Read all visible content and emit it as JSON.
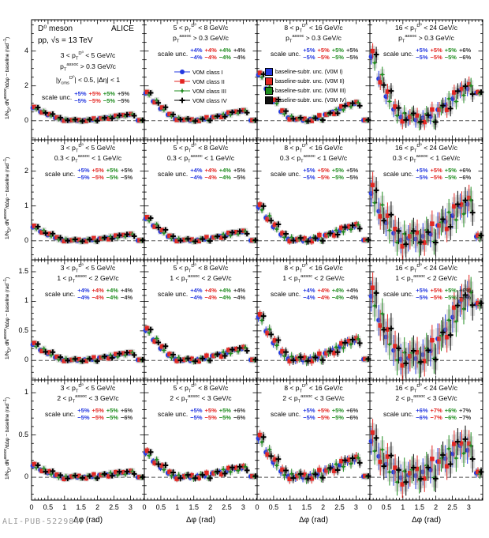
{
  "watermark": "ALI-PUB-522984",
  "header": {
    "meson": "D⁰ meson",
    "experiment": "ALICE",
    "system": "pp, √s = 13 TeV",
    "rapidity": "|y_{cms}^{D⁰}| < 0.5, |Δη| < 1",
    "scale_unc_suffix": "scale unc."
  },
  "legend": {
    "classes": [
      "V0M class I",
      "V0M class II",
      "V0M class III",
      "V0M class IV"
    ],
    "boxes": [
      "baseline-subtr. unc. (V0M I)",
      "baseline-subtr. unc. (V0M II)",
      "baseline-subtr. unc. (V0M III)",
      "baseline-subtr. unc. (V0M IV)"
    ]
  },
  "unc_colors": [
    "#2438e0",
    "#e32622",
    "#1f8c1f",
    "#3a3a3a"
  ],
  "chart_data": {
    "type": "scatter",
    "grid": {
      "rows": 4,
      "cols": 4,
      "shared_x": true
    },
    "xlabel": "Δφ (rad)",
    "ylabel": "1/N_{D⁰} dN^{assoc}/dΔφ − baseline (rad^{−1})",
    "xlim": [
      0,
      3.42
    ],
    "xticks": [
      0,
      0.5,
      1,
      1.5,
      2,
      2.5,
      3
    ],
    "x": [
      0.11,
      0.34,
      0.56,
      0.79,
      1.01,
      1.24,
      1.46,
      1.68,
      1.91,
      2.13,
      2.36,
      2.58,
      2.81,
      3.03,
      3.3
    ],
    "baseline": 0,
    "rows": [
      {
        "assoc_label": "p_{T}^{assoc} > 0.3 GeV/c",
        "ylim": [
          -1.1,
          5.8
        ],
        "yticks": [
          0,
          2,
          4
        ],
        "yminor": 0.5
      },
      {
        "assoc_label": "0.3 < p_{T}^{assoc} < 1 GeV/c",
        "ylim": [
          -0.55,
          2.9
        ],
        "yticks": [
          0,
          1,
          2
        ],
        "yminor": 0.2
      },
      {
        "assoc_label": "1 < p_{T}^{assoc} < 2 GeV/c",
        "ylim": [
          -0.33,
          1.7
        ],
        "yticks": [
          0,
          0.5,
          1,
          1.5
        ],
        "yminor": 0.1
      },
      {
        "assoc_label": "2 < p_{T}^{assoc} < 3 GeV/c",
        "ylim": [
          -0.27,
          1.15
        ],
        "yticks": [
          0,
          0.5,
          1
        ],
        "yminor": 0.1
      }
    ],
    "cols": [
      {
        "dpt_label": "3 < p_{T}^{D⁰} < 5 GeV/c"
      },
      {
        "dpt_label": "5 < p_{T}^{D⁰} < 8 GeV/c"
      },
      {
        "dpt_label": "8 < p_{T}^{D⁰} < 16 GeV/c"
      },
      {
        "dpt_label": "16 < p_{T}^{D⁰} < 24 GeV/c"
      }
    ],
    "series": [
      {
        "name": "V0M class I",
        "marker": "circle",
        "color": "#2438e0",
        "xoff": -3,
        "jitter": [
          0.2,
          -0.1,
          0.1,
          0,
          -0.2,
          0.1,
          0,
          0.1,
          -0.1,
          0.2,
          0,
          -0.1,
          0.1,
          0,
          0
        ]
      },
      {
        "name": "V0M class II",
        "marker": "square",
        "color": "#e32622",
        "xoff": -1,
        "jitter": [
          1,
          -0.6,
          0.8,
          0.4,
          -0.8,
          0.3,
          0.6,
          -0.5,
          0.9,
          0.2,
          -0.7,
          0.8,
          0.3,
          0.6,
          0.1
        ]
      },
      {
        "name": "V0M class III",
        "marker": "star",
        "color": "#1f8c1f",
        "xoff": 1.5,
        "jitter": [
          -0.7,
          0.5,
          -0.6,
          -0.9,
          0.4,
          0.6,
          -0.4,
          0.7,
          -0.8,
          0.5,
          0.9,
          -0.5,
          -0.6,
          0.4,
          -0.1
        ]
      },
      {
        "name": "V0M class IV",
        "marker": "plus",
        "color": "#000000",
        "xoff": 3.5,
        "jitter": [
          0.5,
          -1,
          0.9,
          0.2,
          -0.6,
          0.8,
          -0.3,
          0.5,
          -0.9,
          0.8,
          -0.5,
          1,
          0.7,
          -0.8,
          0.1
        ]
      }
    ],
    "panels": [
      {
        "row": 0,
        "col": 0,
        "plus": [
          "+5%",
          "+5%",
          "+5%",
          "+5%"
        ],
        "minus": [
          "−5%",
          "−5%",
          "−5%",
          "−5%"
        ],
        "err": 0.07,
        "jscale": 0.07,
        "y_base": [
          0.72,
          0.52,
          0.32,
          0.16,
          0.06,
          0.01,
          0.0,
          0.02,
          0.06,
          0.11,
          0.17,
          0.23,
          0.3,
          0.34,
          0.02
        ]
      },
      {
        "row": 0,
        "col": 1,
        "plus": [
          "+4%",
          "+4%",
          "+4%",
          "+4%"
        ],
        "minus": [
          "−4%",
          "−4%",
          "−4%",
          "−4%"
        ],
        "err": 0.09,
        "jscale": 0.1,
        "y_base": [
          1.55,
          1.12,
          0.68,
          0.34,
          0.13,
          0.03,
          0.01,
          0.04,
          0.1,
          0.18,
          0.28,
          0.39,
          0.49,
          0.54,
          0.02
        ]
      },
      {
        "row": 0,
        "col": 2,
        "plus": [
          "+5%",
          "+5%",
          "+5%",
          "+5%"
        ],
        "minus": [
          "−5%",
          "−5%",
          "−5%",
          "−5%"
        ],
        "err": 0.14,
        "jscale": 0.15,
        "y_base": [
          2.6,
          1.85,
          1.08,
          0.52,
          0.2,
          0.05,
          0.02,
          0.07,
          0.17,
          0.32,
          0.5,
          0.7,
          0.9,
          0.98,
          0.03
        ]
      },
      {
        "row": 0,
        "col": 3,
        "plus": [
          "+5%",
          "+5%",
          "+5%",
          "+6%"
        ],
        "minus": [
          "−5%",
          "−5%",
          "−5%",
          "−6%"
        ],
        "err": 0.45,
        "jscale": 0.4,
        "y_base": [
          3.6,
          2.45,
          1.35,
          0.65,
          0.28,
          0.1,
          0.05,
          0.12,
          0.28,
          0.55,
          0.9,
          1.3,
          1.7,
          1.85,
          1.6
        ]
      },
      {
        "row": 1,
        "col": 0,
        "plus": [
          "+5%",
          "+5%",
          "+5%",
          "+5%"
        ],
        "minus": [
          "−5%",
          "−5%",
          "−5%",
          "−5%"
        ],
        "err": 0.05,
        "jscale": 0.05,
        "y_base": [
          0.38,
          0.27,
          0.16,
          0.08,
          0.03,
          0.0,
          0.0,
          0.01,
          0.03,
          0.05,
          0.08,
          0.11,
          0.15,
          0.17,
          0.01
        ]
      },
      {
        "row": 1,
        "col": 1,
        "plus": [
          "+4%",
          "+4%",
          "+4%",
          "+5%"
        ],
        "minus": [
          "−4%",
          "−4%",
          "−4%",
          "−5%"
        ],
        "err": 0.06,
        "jscale": 0.06,
        "y_base": [
          0.62,
          0.44,
          0.26,
          0.12,
          0.04,
          0.01,
          0.0,
          0.02,
          0.05,
          0.08,
          0.13,
          0.18,
          0.23,
          0.25,
          0.01
        ]
      },
      {
        "row": 1,
        "col": 2,
        "plus": [
          "+5%",
          "+5%",
          "+5%",
          "+5%"
        ],
        "minus": [
          "−5%",
          "−5%",
          "−5%",
          "−5%"
        ],
        "err": 0.1,
        "jscale": 0.09,
        "y_base": [
          0.95,
          0.67,
          0.39,
          0.18,
          0.06,
          0.01,
          0.01,
          0.03,
          0.08,
          0.14,
          0.22,
          0.3,
          0.38,
          0.42,
          0.02
        ]
      },
      {
        "row": 1,
        "col": 3,
        "plus": [
          "+5%",
          "+5%",
          "+5%",
          "+6%"
        ],
        "minus": [
          "−5%",
          "−5%",
          "−5%",
          "−6%"
        ],
        "err": 0.38,
        "jscale": 0.3,
        "y_base": [
          1.3,
          0.88,
          0.48,
          0.22,
          0.08,
          0.04,
          0.05,
          0.1,
          0.22,
          0.38,
          0.55,
          0.75,
          0.95,
          1.05,
          0.12
        ]
      },
      {
        "row": 2,
        "col": 0,
        "plus": [
          "+4%",
          "+4%",
          "+4%",
          "+4%"
        ],
        "minus": [
          "−4%",
          "−4%",
          "−4%",
          "−4%"
        ],
        "err": 0.035,
        "jscale": 0.035,
        "y_base": [
          0.26,
          0.18,
          0.11,
          0.05,
          0.02,
          0.0,
          0.0,
          0.01,
          0.02,
          0.04,
          0.06,
          0.08,
          0.11,
          0.12,
          0.01
        ]
      },
      {
        "row": 2,
        "col": 1,
        "plus": [
          "+4%",
          "+4%",
          "+4%",
          "+4%"
        ],
        "minus": [
          "−4%",
          "−4%",
          "−4%",
          "−4%"
        ],
        "err": 0.05,
        "jscale": 0.045,
        "y_base": [
          0.5,
          0.35,
          0.2,
          0.09,
          0.03,
          0.0,
          0.0,
          0.01,
          0.04,
          0.07,
          0.1,
          0.14,
          0.18,
          0.2,
          0.01
        ]
      },
      {
        "row": 2,
        "col": 2,
        "plus": [
          "+4%",
          "+4%",
          "+4%",
          "+4%"
        ],
        "minus": [
          "−4%",
          "−4%",
          "−4%",
          "−4%"
        ],
        "err": 0.08,
        "jscale": 0.06,
        "y_base": [
          0.72,
          0.5,
          0.29,
          0.13,
          0.04,
          0.01,
          0.01,
          0.02,
          0.06,
          0.11,
          0.17,
          0.24,
          0.31,
          0.34,
          0.02
        ]
      },
      {
        "row": 2,
        "col": 3,
        "plus": [
          "+5%",
          "+5%",
          "+5%",
          "+6%"
        ],
        "minus": [
          "−5%",
          "−5%",
          "−5%",
          "−6%"
        ],
        "err": 0.26,
        "jscale": 0.18,
        "y_base": [
          1.05,
          0.7,
          0.38,
          0.17,
          0.06,
          0.02,
          0.03,
          0.08,
          0.18,
          0.33,
          0.52,
          0.75,
          0.98,
          1.08,
          0.95
        ]
      },
      {
        "row": 3,
        "col": 0,
        "plus": [
          "+5%",
          "+5%",
          "+5%",
          "+6%"
        ],
        "minus": [
          "−5%",
          "−5%",
          "−5%",
          "−6%"
        ],
        "err": 0.03,
        "jscale": 0.025,
        "y_base": [
          0.13,
          0.09,
          0.05,
          0.02,
          0.0,
          0.0,
          0.0,
          0.0,
          0.01,
          0.02,
          0.03,
          0.04,
          0.05,
          0.06,
          0.0
        ]
      },
      {
        "row": 3,
        "col": 1,
        "plus": [
          "+5%",
          "+5%",
          "+5%",
          "+6%"
        ],
        "minus": [
          "−5%",
          "−5%",
          "−5%",
          "−6%"
        ],
        "err": 0.04,
        "jscale": 0.035,
        "y_base": [
          0.28,
          0.19,
          0.11,
          0.05,
          0.01,
          0.0,
          0.0,
          0.01,
          0.02,
          0.04,
          0.06,
          0.08,
          0.1,
          0.11,
          0.01
        ]
      },
      {
        "row": 3,
        "col": 2,
        "plus": [
          "+5%",
          "+5%",
          "+5%",
          "+6%"
        ],
        "minus": [
          "−5%",
          "−5%",
          "−5%",
          "−6%"
        ],
        "err": 0.06,
        "jscale": 0.05,
        "y_base": [
          0.45,
          0.3,
          0.17,
          0.07,
          0.02,
          0.0,
          0.0,
          0.01,
          0.04,
          0.07,
          0.11,
          0.15,
          0.19,
          0.21,
          0.01
        ]
      },
      {
        "row": 3,
        "col": 3,
        "plus": [
          "+6%",
          "+7%",
          "+6%",
          "+7%"
        ],
        "minus": [
          "−6%",
          "−7%",
          "−6%",
          "−7%"
        ],
        "err": 0.16,
        "jscale": 0.13,
        "y_base": [
          0.4,
          0.26,
          0.14,
          0.06,
          0.02,
          0.01,
          0.02,
          0.05,
          0.1,
          0.16,
          0.22,
          0.29,
          0.36,
          0.32,
          0.05
        ]
      }
    ]
  }
}
